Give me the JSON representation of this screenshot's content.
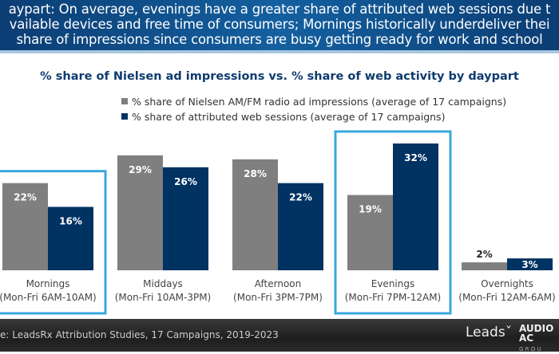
{
  "header": {
    "lines": [
      "aypart: On average, evenings have a greater share of attributed web sessions due t",
      "vailable devices and free time of consumers; Mornings historically underdeliver thei",
      "share of impressions since consumers are busy getting ready for work and school"
    ]
  },
  "chart_data": {
    "type": "bar",
    "title": "% share of Nielsen ad impressions vs. % share of web activity by daypart",
    "categories": [
      "Mornings",
      "Middays",
      "Afternoon",
      "Evenings",
      "Overnights"
    ],
    "category_sublabels": [
      "(Mon-Fri 6AM-10AM)",
      "(Mon-Fri 10AM-3PM)",
      "(Mon-Fri 3PM-7PM)",
      "(Mon-Fri 7PM-12AM)",
      "(Mon-Fri 12AM-6AM)"
    ],
    "series": [
      {
        "name": "% share of Nielsen AM/FM radio ad impressions (average of 17 campaigns)",
        "values": [
          22,
          29,
          28,
          19,
          2
        ],
        "labels": [
          "22%",
          "29%",
          "28%",
          "19%",
          "2%"
        ],
        "color": "#7f7f7f"
      },
      {
        "name": "% share of attributed web sessions (average of 17 campaigns)",
        "values": [
          16,
          26,
          22,
          32,
          3
        ],
        "labels": [
          "16%",
          "26%",
          "22%",
          "32%",
          "3%"
        ],
        "color": "#003262"
      }
    ],
    "highlighted_categories": [
      "Mornings",
      "Evenings"
    ],
    "highlight_color": "#3aa7dc",
    "ylim": [
      0,
      32
    ],
    "legend_position": "top",
    "grid": false
  },
  "footer": {
    "source": "e: LeadsRx Attribution Studies, 17 Campaigns, 2019-2023",
    "logo_leadsrx": "LeadsRx",
    "logo_audio": "AUDIO AC",
    "logo_audio_sub": "G R O U"
  }
}
